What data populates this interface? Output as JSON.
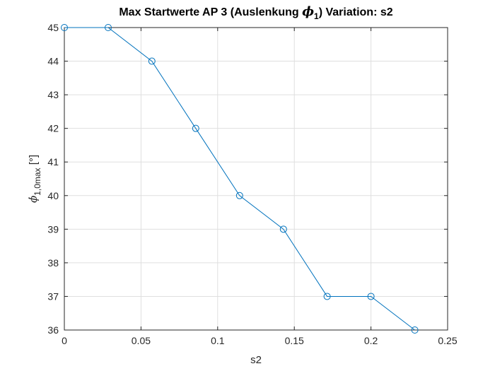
{
  "chart_data": {
    "type": "line",
    "title_prefix": "Max Startwerte AP 3 (Auslenkung ",
    "title_symbol": "ϕ",
    "title_subscript": "1",
    "title_suffix": ")  Variation: s2",
    "xlabel": "s2",
    "ylabel_symbol": "ϕ̇",
    "ylabel_subscript": "1,0max",
    "ylabel_unit": " [°]",
    "xlim": [
      0,
      0.25
    ],
    "ylim": [
      36,
      45
    ],
    "xticks": [
      0,
      0.05,
      0.1,
      0.15,
      0.2,
      0.25
    ],
    "xtick_labels": [
      "0",
      "0.05",
      "0.1",
      "0.15",
      "0.2",
      "0.25"
    ],
    "yticks": [
      36,
      37,
      38,
      39,
      40,
      41,
      42,
      43,
      44,
      45
    ],
    "ytick_labels": [
      "36",
      "37",
      "38",
      "39",
      "40",
      "41",
      "42",
      "43",
      "44",
      "45"
    ],
    "grid": true,
    "series": [
      {
        "color": "#0072BD",
        "marker": "circle",
        "x": [
          0,
          0.0286,
          0.0571,
          0.0857,
          0.1143,
          0.1429,
          0.1714,
          0.2,
          0.2286
        ],
        "y": [
          45,
          45,
          44,
          42,
          40,
          39,
          37,
          37,
          36
        ]
      }
    ]
  }
}
